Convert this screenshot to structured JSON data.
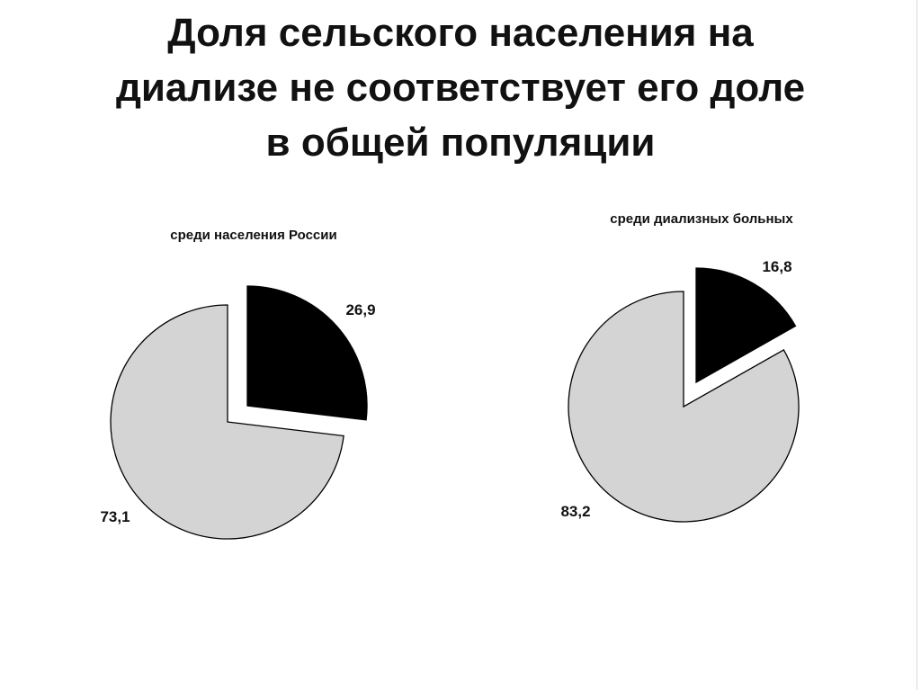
{
  "page": {
    "title": "Доля сельского населения на\nдиализе не соответствует его доле\nв общей популяции"
  },
  "colors": {
    "rural_slice": "#000000",
    "other_slice": "#d4d4d4",
    "outline": "#000000"
  },
  "chart_data": [
    {
      "type": "pie",
      "title": "среди населения России",
      "exploded_slice": 0,
      "slices": [
        {
          "value": 26.9,
          "label": "26,9",
          "color": "#000000"
        },
        {
          "value": 73.1,
          "label": "73,1",
          "color": "#d4d4d4"
        }
      ]
    },
    {
      "type": "pie",
      "title": "среди диализных больных",
      "exploded_slice": 0,
      "slices": [
        {
          "value": 16.8,
          "label": "16,8",
          "color": "#000000"
        },
        {
          "value": 83.2,
          "label": "83,2",
          "color": "#d4d4d4"
        }
      ]
    }
  ]
}
